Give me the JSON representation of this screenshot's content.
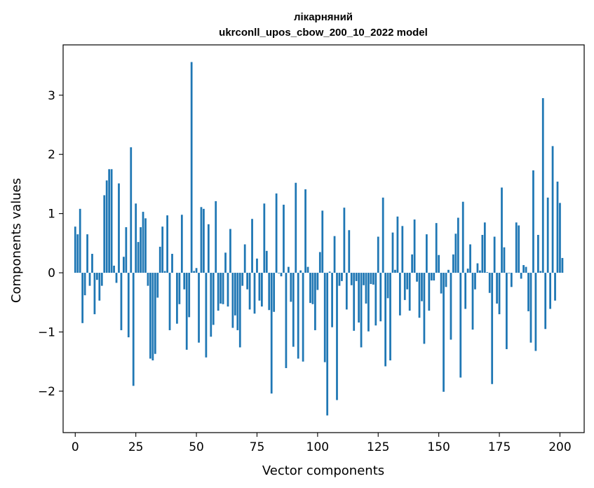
{
  "chart_data": {
    "type": "bar",
    "title_line1": "лікарняний",
    "title_line2": "ukrconll_upos_cbow_200_10_2022 model",
    "xlabel": "Vector components",
    "ylabel": "Components values",
    "xlim": [
      -5,
      210
    ],
    "ylim": [
      -2.7,
      3.85
    ],
    "xticks": [
      0,
      25,
      50,
      75,
      100,
      125,
      150,
      175,
      200
    ],
    "xtick_labels": [
      "0",
      "25",
      "50",
      "75",
      "100",
      "125",
      "150",
      "175",
      "200"
    ],
    "yticks": [
      -2,
      -1,
      0,
      1,
      2,
      3
    ],
    "ytick_labels": [
      "−2",
      "−1",
      "0",
      "1",
      "2",
      "3"
    ],
    "bar_color": "#1f77b4",
    "grid": false,
    "values": [
      0.78,
      0.65,
      1.08,
      -0.85,
      -0.38,
      0.65,
      -0.22,
      0.32,
      -0.7,
      -0.12,
      -0.47,
      -0.22,
      1.31,
      1.56,
      1.75,
      1.75,
      0.12,
      -0.17,
      1.51,
      -0.97,
      0.27,
      0.77,
      -1.09,
      2.12,
      -1.91,
      1.17,
      0.52,
      0.77,
      1.03,
      0.92,
      -0.22,
      -1.45,
      -1.48,
      -1.37,
      -0.42,
      0.44,
      0.78,
      0.03,
      0.97,
      -0.97,
      0.32,
      0.0,
      -0.86,
      -0.53,
      0.98,
      -0.28,
      -1.3,
      -0.75,
      3.56,
      0.03,
      0.08,
      -1.18,
      1.11,
      1.08,
      -1.43,
      0.82,
      -1.08,
      -0.88,
      1.21,
      -0.64,
      -0.52,
      -0.53,
      0.34,
      -0.57,
      0.74,
      -0.93,
      -0.72,
      -0.97,
      -1.26,
      -0.22,
      0.48,
      -0.28,
      -0.62,
      0.91,
      -0.69,
      0.24,
      -0.47,
      -0.57,
      1.17,
      0.37,
      -0.63,
      -2.04,
      -0.66,
      1.34,
      -0.01,
      -0.06,
      1.15,
      -1.61,
      0.1,
      -0.49,
      -1.25,
      1.52,
      -1.45,
      0.04,
      -1.5,
      1.41,
      0.1,
      -0.51,
      -0.53,
      -0.97,
      -0.29,
      0.35,
      1.05,
      -1.51,
      -2.41,
      0.02,
      -0.92,
      0.62,
      -2.15,
      -0.22,
      -0.14,
      1.1,
      -0.62,
      0.72,
      -0.21,
      -0.98,
      -0.14,
      -0.84,
      -1.26,
      -0.21,
      -0.52,
      -0.99,
      -0.19,
      -0.2,
      -0.89,
      0.61,
      -0.82,
      1.27,
      -1.58,
      -0.43,
      -1.48,
      0.68,
      0.05,
      0.95,
      -0.72,
      0.79,
      -0.46,
      -0.28,
      -0.64,
      0.31,
      0.9,
      -0.15,
      -0.76,
      -0.48,
      -1.2,
      0.65,
      -0.64,
      -0.13,
      -0.13,
      0.84,
      0.3,
      -0.35,
      -2.01,
      -0.24,
      0.05,
      -1.13,
      0.31,
      0.66,
      0.93,
      -1.77,
      1.2,
      -0.61,
      0.07,
      0.48,
      -0.96,
      -0.28,
      0.16,
      0.04,
      0.64,
      0.85,
      0.01,
      -0.34,
      -1.88,
      0.61,
      -0.52,
      -0.7,
      1.44,
      0.43,
      -1.29,
      -0.01,
      -0.24,
      0.0,
      0.85,
      0.8,
      -0.1,
      0.13,
      0.1,
      -0.65,
      -1.18,
      1.73,
      -1.32,
      0.64,
      0.03,
      2.95,
      -0.95,
      1.27,
      -0.61,
      2.14,
      -0.47,
      1.54,
      1.18,
      0.25
    ]
  }
}
